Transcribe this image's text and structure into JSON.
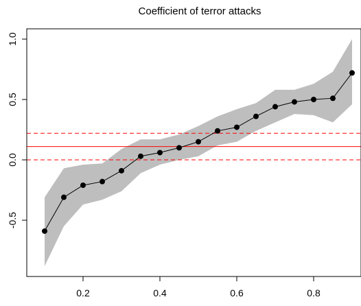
{
  "chart_data": {
    "type": "line",
    "title": "Coefficient of terror attacks",
    "xlabel": "",
    "ylabel": "",
    "xlim": [
      0.1,
      0.9
    ],
    "ylim": [
      -0.9,
      1.05
    ],
    "x": [
      0.1,
      0.15,
      0.2,
      0.25,
      0.3,
      0.35,
      0.4,
      0.45,
      0.5,
      0.55,
      0.6,
      0.65,
      0.7,
      0.75,
      0.8,
      0.85,
      0.9
    ],
    "series": [
      {
        "name": "",
        "values": [
          -0.59,
          -0.31,
          -0.21,
          -0.18,
          -0.09,
          0.03,
          0.06,
          0.1,
          0.15,
          0.24,
          0.27,
          0.36,
          0.44,
          0.48,
          0.5,
          0.51,
          0.72
        ],
        "lower": [
          -0.88,
          -0.55,
          -0.37,
          -0.33,
          -0.26,
          -0.11,
          -0.04,
          0.0,
          0.03,
          0.12,
          0.15,
          0.24,
          0.31,
          0.38,
          0.37,
          0.31,
          0.46
        ],
        "upper": [
          -0.31,
          -0.07,
          -0.04,
          -0.03,
          0.09,
          0.17,
          0.17,
          0.21,
          0.28,
          0.36,
          0.42,
          0.47,
          0.58,
          0.58,
          0.63,
          0.73,
          1.0
        ]
      }
    ],
    "hlines": [
      {
        "y": 0.0,
        "style": "dashed",
        "color": "#000000"
      },
      {
        "y": 0.0,
        "style": "dashed",
        "color": "#ff0000"
      },
      {
        "y": 0.11,
        "style": "solid",
        "color": "#ff0000"
      },
      {
        "y": 0.22,
        "style": "dashed",
        "color": "#ff0000"
      }
    ],
    "xticks": [
      0.2,
      0.4,
      0.6,
      0.8
    ],
    "xtick_labels": [
      "0.2",
      "0.4",
      "0.6",
      "0.8"
    ],
    "yticks": [
      -0.5,
      0.0,
      0.5,
      1.0
    ],
    "ytick_labels": [
      "-0.5",
      "0.0",
      "0.5",
      "1.0"
    ],
    "band_color": "#bebebe",
    "grid": false,
    "legend": "none"
  }
}
